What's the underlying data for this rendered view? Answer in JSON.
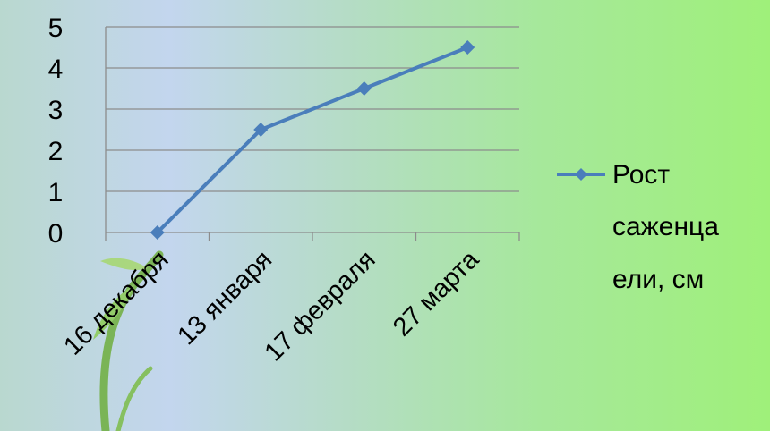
{
  "chart_data": {
    "type": "line",
    "categories": [
      "16 декабря",
      "13 января",
      "17 февраля",
      "27 марта"
    ],
    "series": [
      {
        "name_lines": [
          "Рост",
          "саженца",
          "ели, см"
        ],
        "values": [
          0,
          2.5,
          3.5,
          4.5
        ]
      }
    ],
    "yticks": [
      "0",
      "1",
      "2",
      "3",
      "4",
      "5"
    ],
    "ylim": [
      0,
      5
    ],
    "grid": true,
    "legend": "right",
    "colors": {
      "line": "#4a7ebb",
      "grid": "#8c8c8c",
      "axis": "#8c8c8c"
    }
  }
}
